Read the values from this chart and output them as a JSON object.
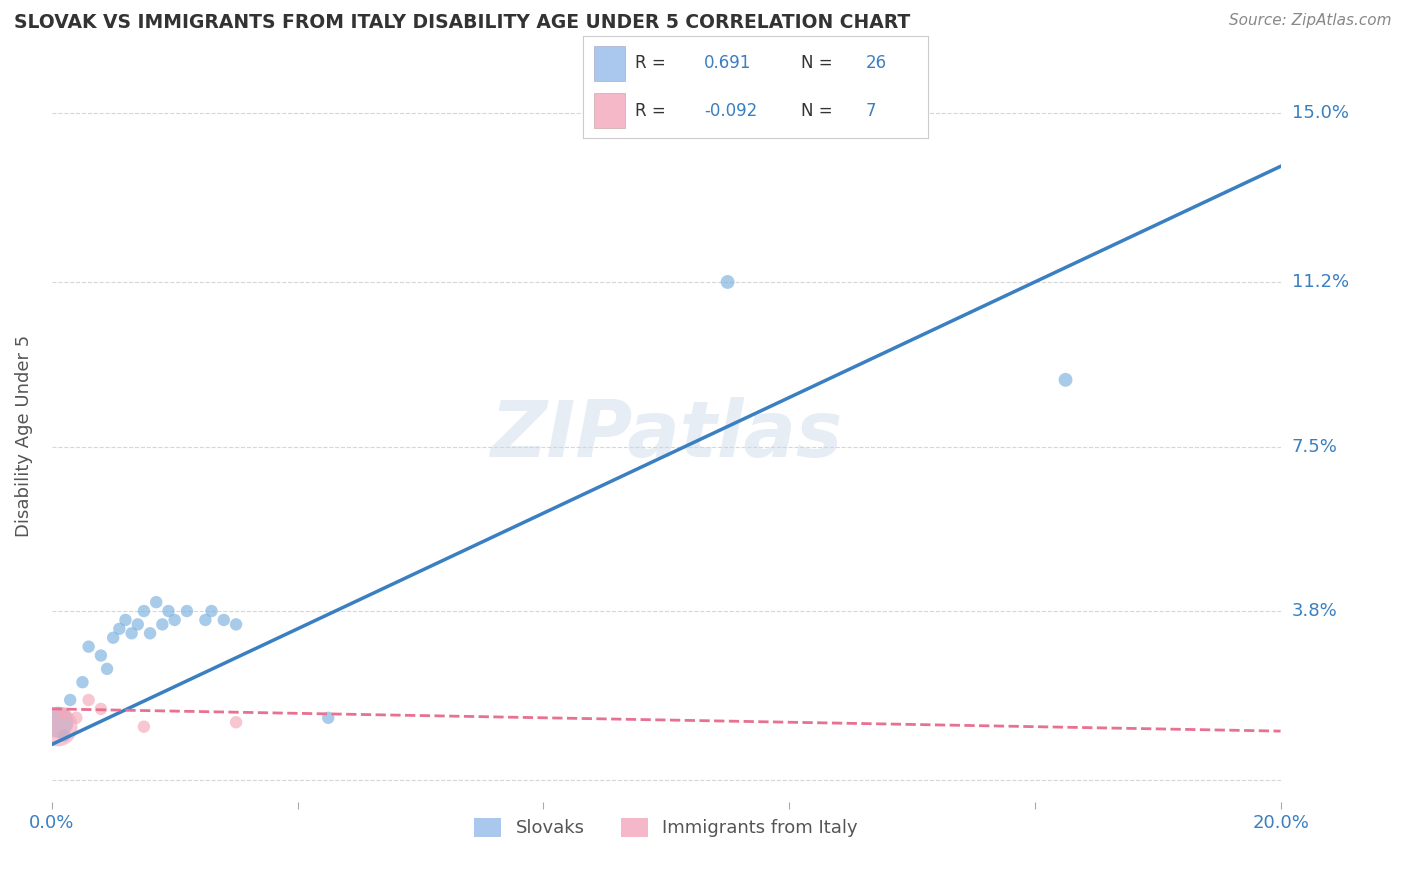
{
  "title": "SLOVAK VS IMMIGRANTS FROM ITALY DISABILITY AGE UNDER 5 CORRELATION CHART",
  "source": "Source: ZipAtlas.com",
  "ylabel": "Disability Age Under 5",
  "xlim": [
    0.0,
    0.2
  ],
  "ylim": [
    -0.005,
    0.16
  ],
  "x_ticks": [
    0.0,
    0.04,
    0.08,
    0.12,
    0.16,
    0.2
  ],
  "x_tick_labels": [
    "0.0%",
    "",
    "",
    "",
    "",
    "20.0%"
  ],
  "y_ticks": [
    0.0,
    0.038,
    0.075,
    0.112,
    0.15
  ],
  "y_tick_labels": [
    "",
    "3.8%",
    "7.5%",
    "11.2%",
    "15.0%"
  ],
  "watermark": "ZIPatlas",
  "blue_R": 0.691,
  "blue_N": 26,
  "pink_R": -0.092,
  "pink_N": 7,
  "blue_color": "#7ab0e0",
  "pink_color": "#f4a8b8",
  "blue_line_color": "#3a7fc1",
  "pink_line_color": "#e87090",
  "legend_blue_fill": "#aac8ee",
  "legend_pink_fill": "#f4b8c8",
  "title_color": "#333333",
  "axis_label_color": "#3a7fc1",
  "legend_RN_color": "#3a7fc1",
  "blue_scatter_x": [
    0.001,
    0.002,
    0.003,
    0.005,
    0.006,
    0.008,
    0.009,
    0.01,
    0.011,
    0.012,
    0.013,
    0.014,
    0.015,
    0.016,
    0.017,
    0.018,
    0.019,
    0.02,
    0.022,
    0.025,
    0.026,
    0.028,
    0.03,
    0.045,
    0.11,
    0.165
  ],
  "blue_scatter_y": [
    0.013,
    0.01,
    0.018,
    0.022,
    0.03,
    0.028,
    0.025,
    0.032,
    0.034,
    0.036,
    0.033,
    0.035,
    0.038,
    0.033,
    0.04,
    0.035,
    0.038,
    0.036,
    0.038,
    0.036,
    0.038,
    0.036,
    0.035,
    0.014,
    0.112,
    0.09
  ],
  "blue_scatter_sizes": [
    500,
    80,
    80,
    80,
    80,
    80,
    80,
    80,
    80,
    80,
    80,
    80,
    80,
    80,
    80,
    80,
    80,
    80,
    80,
    80,
    80,
    80,
    80,
    80,
    100,
    100
  ],
  "pink_scatter_x": [
    0.001,
    0.002,
    0.004,
    0.006,
    0.008,
    0.015,
    0.03
  ],
  "pink_scatter_y": [
    0.012,
    0.015,
    0.014,
    0.018,
    0.016,
    0.012,
    0.013
  ],
  "pink_scatter_sizes": [
    800,
    80,
    80,
    80,
    80,
    80,
    80
  ],
  "blue_line_x0": 0.0,
  "blue_line_y0": 0.008,
  "blue_line_x1": 0.2,
  "blue_line_y1": 0.138,
  "pink_line_x0": 0.0,
  "pink_line_y0": 0.016,
  "pink_line_x1": 0.2,
  "pink_line_y1": 0.011,
  "pink_line_style": "--",
  "grid_color": "#cccccc",
  "background_color": "#ffffff"
}
